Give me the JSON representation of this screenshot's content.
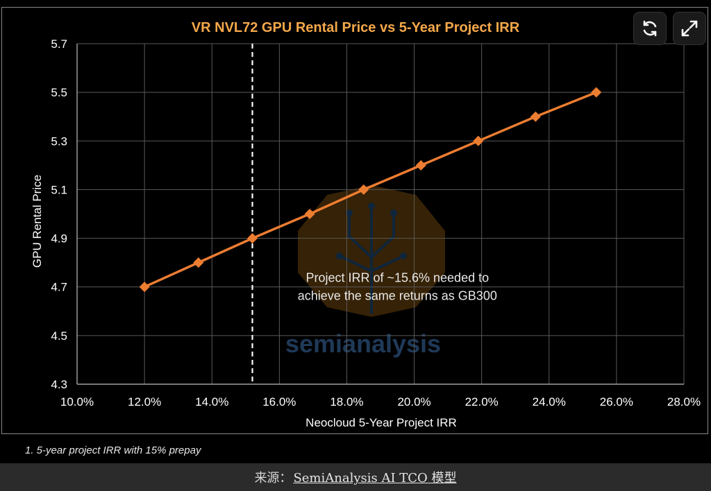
{
  "chart_data": {
    "type": "line",
    "title": "VR NVL72 GPU Rental Price vs 5-Year Project IRR",
    "xlabel": "Neocloud 5-Year Project IRR",
    "ylabel": "GPU Rental Price",
    "xlim": [
      10.0,
      28.0
    ],
    "ylim": [
      4.3,
      5.7
    ],
    "x_ticks": [
      "10.0%",
      "12.0%",
      "14.0%",
      "16.0%",
      "18.0%",
      "20.0%",
      "22.0%",
      "24.0%",
      "26.0%",
      "28.0%"
    ],
    "y_ticks": [
      "5.7",
      "5.5",
      "5.3",
      "5.1",
      "4.9",
      "4.7",
      "4.5",
      "4.3"
    ],
    "grid": true,
    "series": [
      {
        "x": [
          12.0,
          13.6,
          15.2,
          16.9,
          18.5,
          20.2,
          21.9,
          23.6,
          25.4
        ],
        "y": [
          4.7,
          4.8,
          4.9,
          5.0,
          5.1,
          5.2,
          5.3,
          5.4,
          5.5
        ],
        "color": "#ed7d31",
        "marker": "diamond"
      }
    ],
    "reference_line": {
      "x": 15.2,
      "style": "dashed",
      "color": "#ffffff"
    },
    "annotation": {
      "line1": "Project IRR of ~15.6% needed to",
      "line2": "achieve the same returns as GB300",
      "x": 19.5,
      "y": 4.72
    },
    "watermark": "semianalysis"
  },
  "colors": {
    "title": "#f5a84a",
    "series": "#ed7d31",
    "background": "#000000"
  },
  "toolbar": {
    "refresh_icon": "refresh-icon",
    "expand_icon": "expand-icon"
  },
  "footnote": "1. 5-year project IRR with 15% prepay",
  "source": {
    "prefix": "来源：",
    "link_text": "SemiAnalysis AI TCO 模型"
  }
}
